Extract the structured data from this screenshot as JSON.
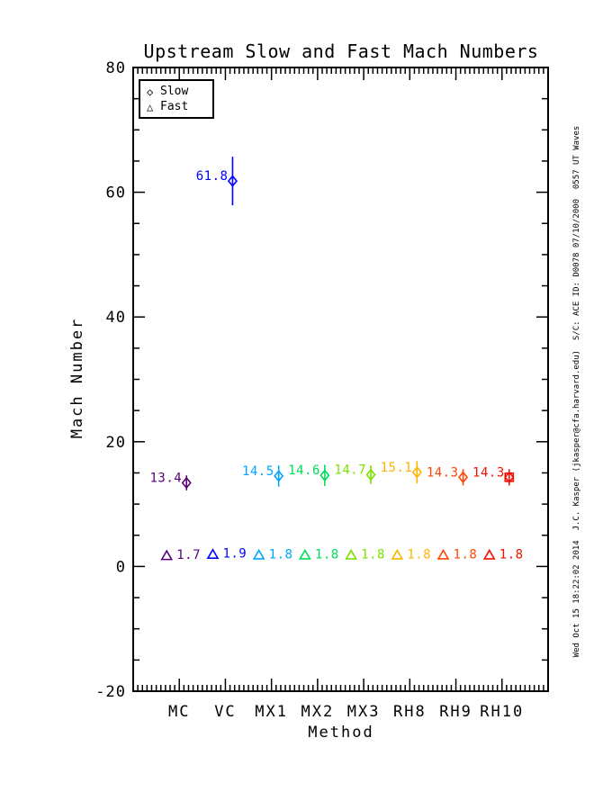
{
  "side_note": "Wed Oct 15 18:22:02 2014  J.C. Kasper (jkasper@cfa.harvard.edu)  S/C: ACE ID: D0078 07/10/2000  0557 UT Waves",
  "chart_data": {
    "type": "scatter",
    "title": "Upstream Slow and Fast Mach Numbers",
    "xlabel": "Method",
    "ylabel": "Mach Number",
    "ylim": [
      -20,
      80
    ],
    "yticks": [
      80,
      60,
      40,
      20,
      0,
      -20
    ],
    "y_minor_step": 5,
    "grid": false,
    "categories": [
      "MC",
      "VC",
      "MX1",
      "MX2",
      "MX3",
      "RH8",
      "RH9",
      "RH10"
    ],
    "category_colors": [
      "#570078",
      "#0000FF",
      "#00A6FF",
      "#00DC5A",
      "#7DE100",
      "#FFB300",
      "#FF4600",
      "#F60F00"
    ],
    "legend": {
      "position": "top-left",
      "entries": [
        {
          "glyph": "◇",
          "marker": "diamond",
          "label": "Slow"
        },
        {
          "glyph": "△",
          "marker": "triangle",
          "label": "Fast"
        }
      ]
    },
    "series": [
      {
        "name": "Slow",
        "marker": "diamond",
        "values": [
          13.4,
          61.8,
          14.5,
          14.6,
          14.7,
          15.1,
          14.3,
          14.3
        ],
        "labels": [
          "13.4",
          "61.8",
          "14.5",
          "14.6",
          "14.7",
          "15.1",
          "14.3",
          "14.3"
        ],
        "errors": [
          1.2,
          3.9,
          1.7,
          1.7,
          1.5,
          1.8,
          1.3,
          1.3
        ]
      },
      {
        "name": "Fast",
        "marker": "triangle",
        "values": [
          1.7,
          1.9,
          1.8,
          1.8,
          1.8,
          1.8,
          1.8,
          1.8
        ],
        "labels": [
          "1.7",
          "1.9",
          "1.8",
          "1.8",
          "1.8",
          "1.8",
          "1.8",
          "1.8"
        ],
        "errors": [
          0,
          0,
          0,
          0,
          0,
          0,
          0,
          0
        ]
      }
    ]
  }
}
